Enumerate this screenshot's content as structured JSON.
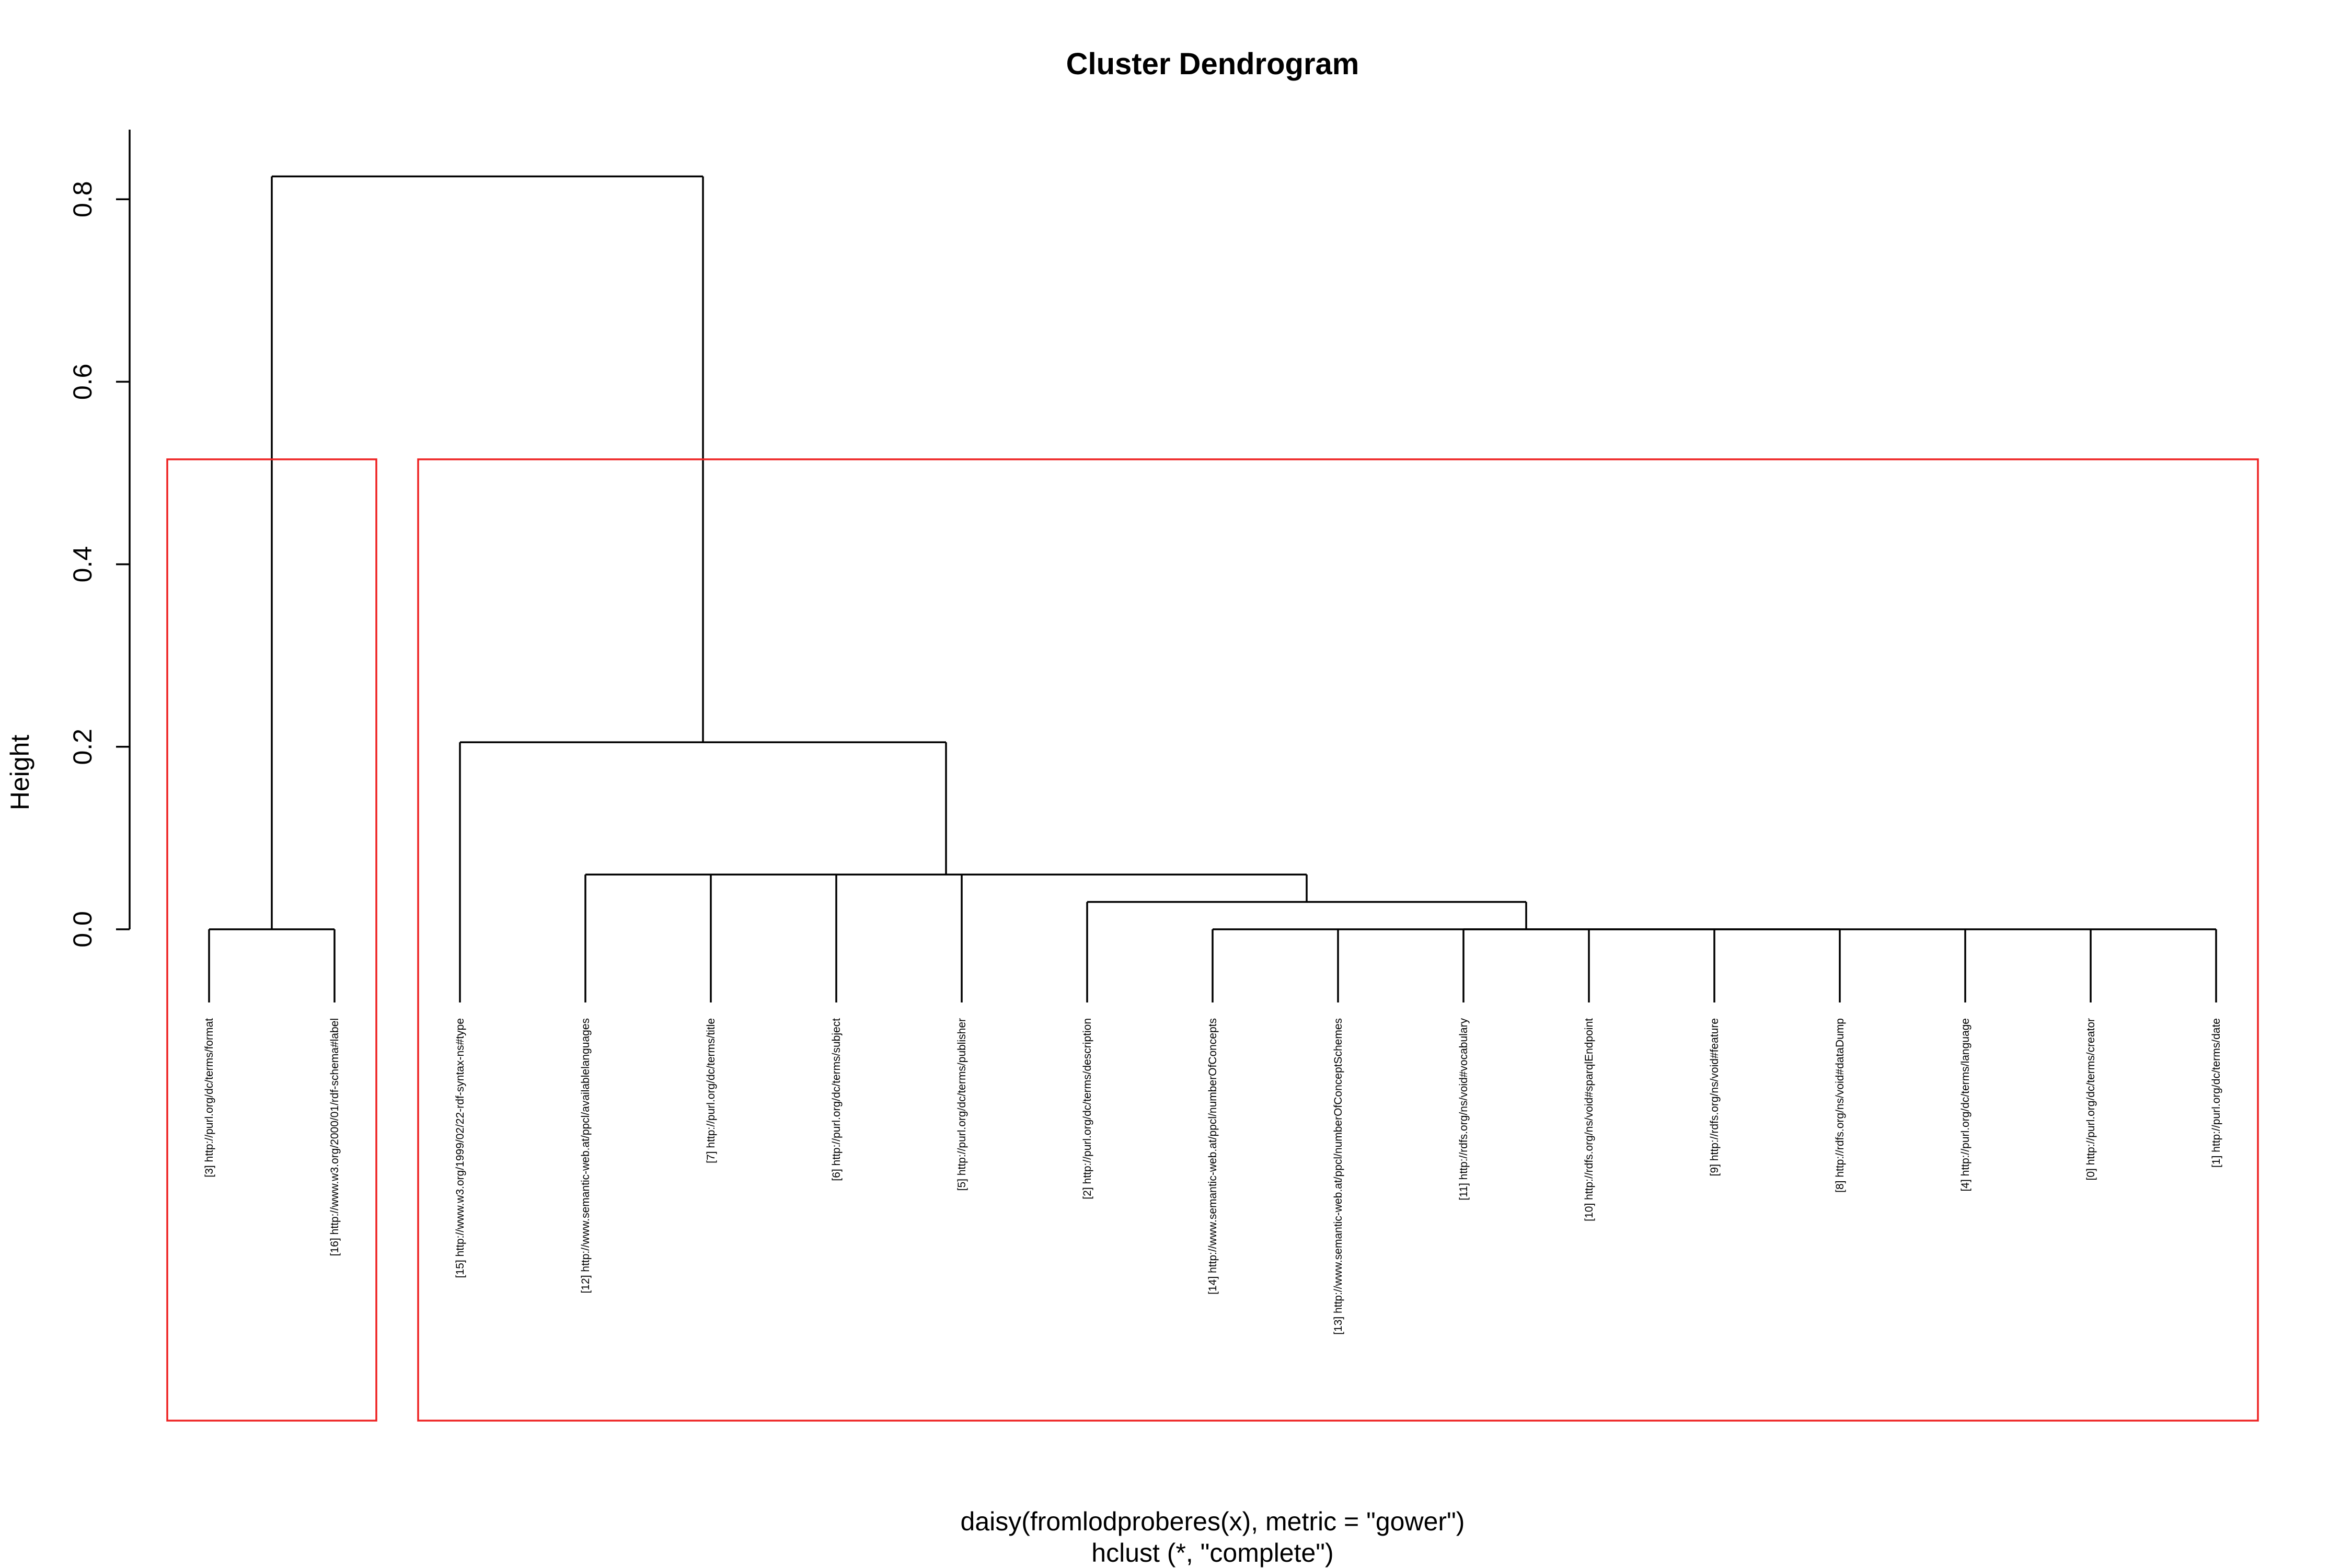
{
  "chart_data": {
    "type": "dendrogram",
    "title": "Cluster Dendrogram",
    "ylabel": "Height",
    "xlabel": "daisy(fromlodproberes(x), metric = \"gower\")",
    "sub": "hclust (*, \"complete\")",
    "ylim": [
      0,
      0.87
    ],
    "yticks": [
      "0.0",
      "0.2",
      "0.4",
      "0.6",
      "0.8"
    ],
    "yticks_values": [
      0,
      0.2,
      0.4,
      0.6,
      0.8
    ],
    "leaves": [
      "[3] http://purl.org/dc/terms/format",
      "[16] http://www.w3.org/2000/01/rdf-schema#label",
      "[15] http://www.w3.org/1999/02/22-rdf-syntax-ns#type",
      "[12] http://www.semantic-web.at/ppcl/availablelanguages",
      "[7] http://purl.org/dc/terms/title",
      "[6] http://purl.org/dc/terms/subject",
      "[5] http://purl.org/dc/terms/publisher",
      "[2] http://purl.org/dc/terms/description",
      "[14] http://www.semantic-web.at/ppcl/numberOfConcepts",
      "[13] http://www.semantic-web.at/ppcl/numberOfConceptSchemes",
      "[11] http://rdfs.org/ns/void#vocabulary",
      "[10] http://rdfs.org/ns/void#sparqlEndpoint",
      "[9] http://rdfs.org/ns/void#feature",
      "[8] http://rdfs.org/ns/void#dataDump",
      "[4] http://purl.org/dc/terms/language",
      "[0] http://purl.org/dc/terms/creator",
      "[1] http://purl.org/dc/terms/date"
    ],
    "merges": [
      {
        "children": [
          0,
          1
        ],
        "height": 0
      },
      {
        "children": [
          10,
          11,
          12,
          13,
          14,
          15,
          16
        ],
        "height": 0
      },
      {
        "children": [
          8,
          9,
          10
        ],
        "height": 0
      },
      {
        "children": [
          8,
          9
        ],
        "height": 0.03
      },
      {
        "children": [
          7,
          8
        ],
        "height": 0.03
      },
      {
        "children": [
          3,
          4,
          5,
          6,
          7
        ],
        "height": 0.06
      },
      {
        "children": [
          2,
          4
        ],
        "height": 0.205
      },
      {
        "children": [
          0,
          2
        ],
        "height": 0.825
      }
    ],
    "clusters": [
      {
        "leaves": [
          0,
          1
        ]
      },
      {
        "leaves": [
          2,
          3,
          4,
          5,
          6,
          7,
          8,
          9,
          10,
          11,
          12,
          13,
          14,
          15,
          16
        ]
      }
    ],
    "cluster_border_color": "#ee2222",
    "grid": false,
    "legend": "none"
  }
}
